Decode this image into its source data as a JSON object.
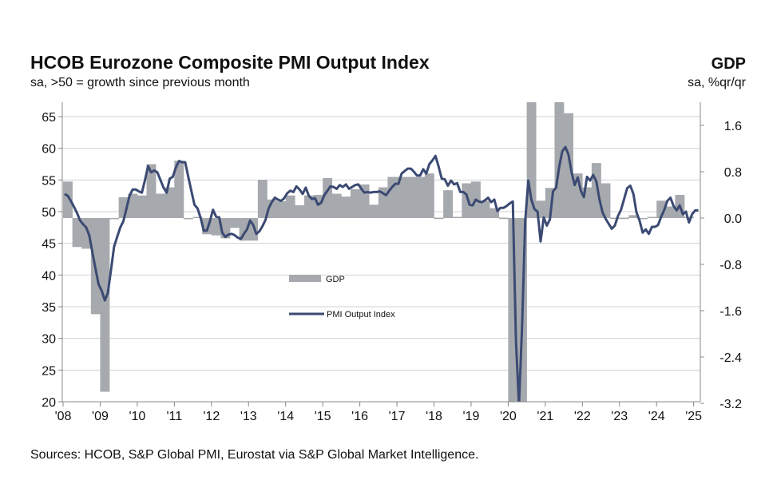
{
  "chart_data": {
    "type": "bar+line",
    "title": "HCOB Eurozone Composite PMI Output Index",
    "subtitle": "sa, >50 = growth since previous month",
    "right_title": "GDP",
    "right_subtitle": "sa, %qr/qr",
    "source": "Sources: HCOB, S&P Global PMI,  Eurostat via S&P Global Market Intelligence.",
    "x_tick_labels": [
      "'08",
      "'09",
      "'10",
      "'11",
      "'12",
      "'13",
      "'14",
      "'15",
      "'16",
      "'17",
      "'18",
      "'19",
      "'20",
      "'21",
      "'22",
      "'23",
      "'24",
      "'25"
    ],
    "y_left": {
      "ylim": [
        20,
        65
      ],
      "ticks": [
        "20",
        "25",
        "30",
        "35",
        "40",
        "45",
        "50",
        "55",
        "60",
        "65"
      ]
    },
    "y_right": {
      "ylim": [
        -3.2,
        2.0
      ],
      "ticks": [
        "-3.2",
        "-2.4",
        "-1.6",
        "-0.8",
        "0.0",
        "0.8",
        "1.6"
      ]
    },
    "grid": true,
    "legend": {
      "position": "center",
      "gdp_label": "GDP",
      "pmi_label": "PMI Output Index"
    },
    "colors": {
      "gdp": "#a6a9ad",
      "pmi": "#3b4a73",
      "grid": "#cfd2d6"
    },
    "gdp": {
      "name": "GDP",
      "axis": "right",
      "frequency": "quarterly",
      "start": "2008-Q1",
      "values": [
        0.63,
        -0.5,
        -0.53,
        -1.66,
        -3.0,
        -0.02,
        0.36,
        0.42,
        0.39,
        0.93,
        0.42,
        0.53,
        0.99,
        -0.02,
        0.02,
        -0.28,
        -0.3,
        -0.35,
        -0.17,
        -0.39,
        -0.39,
        0.66,
        0.32,
        0.29,
        0.39,
        0.22,
        0.39,
        0.4,
        0.69,
        0.42,
        0.37,
        0.5,
        0.58,
        0.23,
        0.53,
        0.71,
        0.71,
        0.71,
        0.71,
        0.77,
        -0.01,
        0.48,
        0.02,
        0.6,
        0.63,
        0.3,
        0.17,
        -0.01,
        -3.5,
        -11.0,
        12.0,
        0.3,
        0.52,
        2.1,
        1.81,
        0.77,
        0.53,
        0.95,
        0.6,
        -0.01,
        -0.01,
        0.05,
        -0.02,
        0.02,
        0.3,
        0.2,
        0.4,
        0.02
      ]
    },
    "pmi": {
      "name": "PMI Output Index",
      "axis": "left",
      "frequency": "monthly",
      "start": "2008-01",
      "values": [
        52.8,
        52.5,
        51.7,
        50.8,
        49.8,
        48.6,
        48.0,
        47.5,
        46.2,
        43.5,
        41.0,
        38.5,
        37.5,
        36.0,
        37.2,
        40.8,
        44.5,
        46.0,
        47.5,
        48.5,
        50.5,
        52.5,
        53.5,
        53.5,
        53.2,
        53.0,
        55.0,
        57.2,
        56.2,
        56.5,
        56.2,
        55.0,
        53.8,
        53.0,
        55.2,
        55.5,
        57.0,
        58.0,
        57.8,
        57.8,
        55.5,
        53.3,
        51.1,
        50.5,
        49.0,
        47.0,
        47.0,
        48.5,
        50.3,
        49.2,
        49.1,
        46.7,
        46.0,
        46.4,
        46.5,
        46.3,
        45.9,
        45.7,
        46.5,
        47.2,
        48.6,
        47.9,
        46.5,
        46.9,
        47.7,
        48.7,
        50.5,
        51.5,
        52.2,
        51.9,
        51.7,
        52.1,
        52.9,
        53.3,
        53.1,
        54.0,
        53.5,
        52.8,
        53.8,
        52.5,
        52.0,
        52.1,
        51.1,
        51.4,
        52.6,
        53.3,
        54.0,
        53.9,
        53.6,
        54.2,
        53.9,
        54.3,
        53.6,
        53.9,
        54.2,
        54.3,
        53.6,
        53.0,
        53.1,
        53.0,
        53.1,
        53.1,
        53.2,
        52.9,
        52.6,
        53.3,
        53.9,
        54.4,
        54.4,
        56.0,
        56.4,
        56.8,
        56.8,
        56.3,
        55.7,
        55.7,
        56.7,
        56.0,
        57.5,
        58.1,
        58.8,
        57.1,
        55.2,
        55.1,
        54.1,
        54.9,
        54.3,
        54.5,
        53.1,
        53.1,
        52.7,
        51.1,
        51.0,
        51.9,
        51.6,
        51.5,
        51.8,
        52.2,
        51.5,
        51.9,
        50.1,
        50.6,
        50.6,
        50.9,
        51.3,
        51.6,
        29.7,
        13.6,
        31.9,
        48.5,
        54.9,
        51.9,
        50.4,
        50.0,
        45.3,
        49.1,
        47.8,
        48.8,
        53.2,
        53.8,
        57.1,
        59.5,
        60.2,
        59.0,
        56.2,
        54.2,
        55.4,
        53.3,
        52.3,
        55.5,
        54.9,
        55.8,
        54.8,
        52.0,
        49.9,
        48.9,
        48.1,
        47.3,
        47.8,
        49.3,
        50.3,
        52.0,
        53.7,
        54.1,
        52.8,
        49.9,
        48.6,
        46.7,
        47.2,
        46.5,
        47.6,
        47.6,
        47.9,
        49.2,
        50.3,
        51.7,
        52.2,
        50.9,
        50.2,
        51.0,
        49.6,
        50.0,
        48.3,
        49.6,
        50.2,
        50.2
      ]
    }
  }
}
